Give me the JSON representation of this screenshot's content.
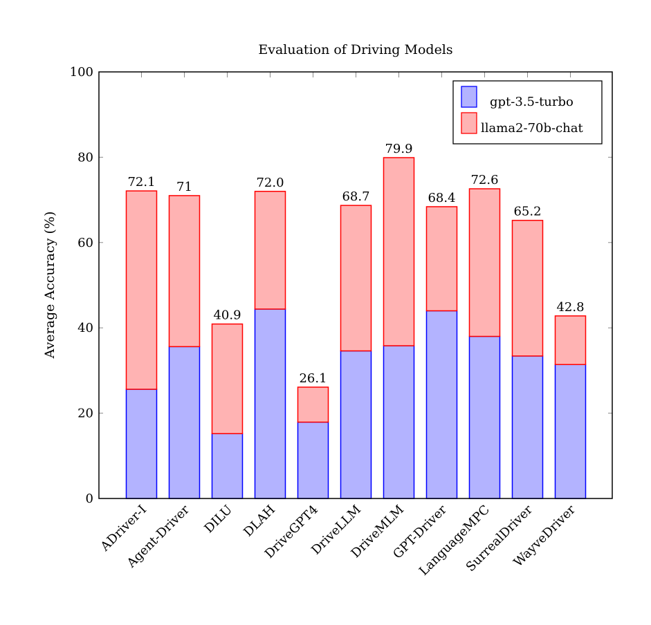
{
  "chart_data": {
    "type": "bar",
    "stacked": true,
    "title": "Evaluation of Driving Models",
    "xlabel": "",
    "ylabel": "Average Accuracy (%)",
    "ylim": [
      0,
      100
    ],
    "yticks": [
      0,
      20,
      40,
      60,
      80,
      100
    ],
    "categories": [
      "ADriver-I",
      "Agent-Driver",
      "DILU",
      "DLAH",
      "DriveGPT4",
      "DriveLLM",
      "DriveMLM",
      "GPT-Driver",
      "LanguageMPC",
      "SurrealDriver",
      "WayveDriver"
    ],
    "series": [
      {
        "name": "gpt-3.5-turbo",
        "fill": "#b3b3ff",
        "stroke": "#0000ff",
        "values": [
          25.6,
          35.6,
          15.2,
          44.4,
          17.9,
          34.6,
          35.8,
          44.0,
          38.0,
          33.4,
          31.4
        ]
      },
      {
        "name": "llama2-70b-chat",
        "fill": "#ffb3b3",
        "stroke": "#ff0000",
        "values": [
          46.5,
          35.4,
          25.7,
          27.6,
          8.2,
          34.1,
          44.1,
          24.4,
          34.6,
          31.8,
          11.4
        ]
      }
    ],
    "totals_labels": [
      "72.1",
      "71",
      "40.9",
      "72.0",
      "26.1",
      "68.7",
      "79.9",
      "68.4",
      "72.6",
      "65.2",
      "42.8"
    ],
    "legend_position": "top-right",
    "grid": false
  }
}
